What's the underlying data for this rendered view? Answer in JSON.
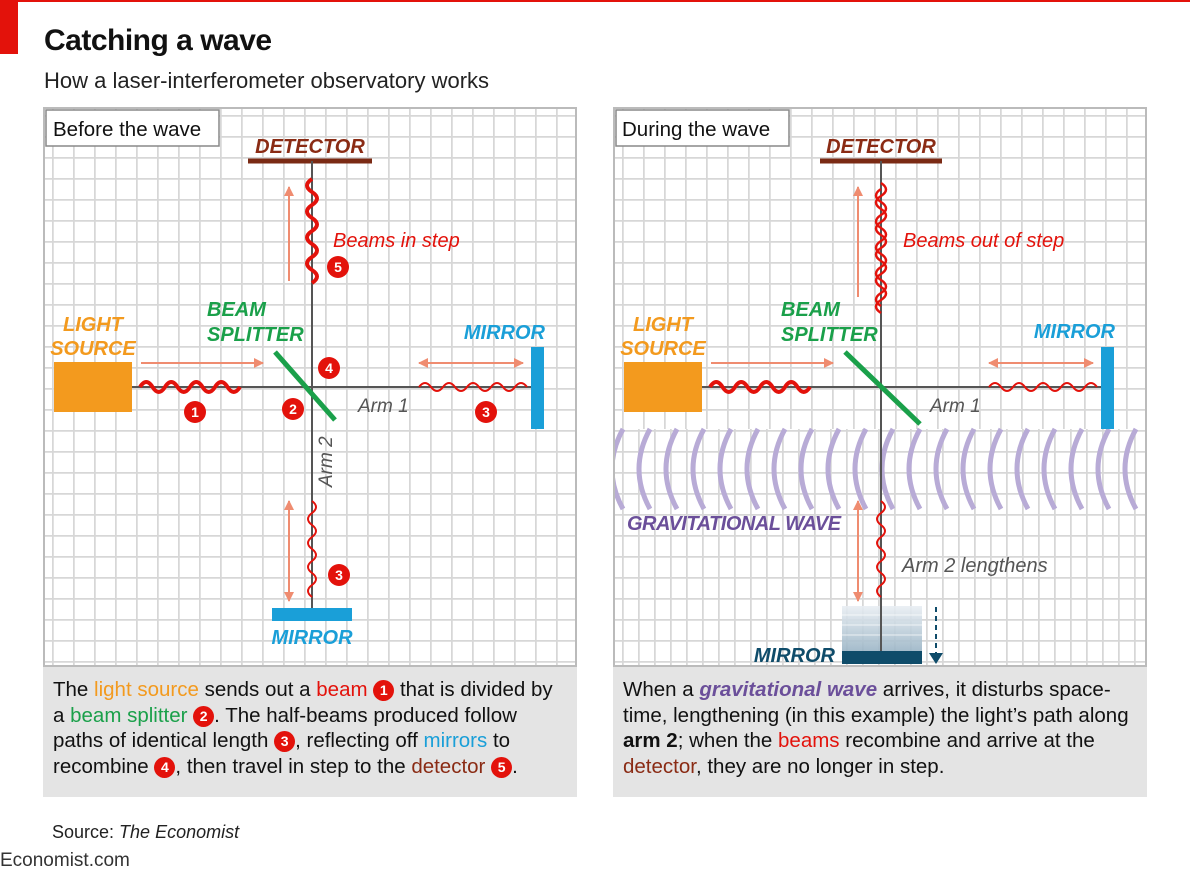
{
  "header": {
    "title": "Catching a wave",
    "subtitle": "How a laser-interferometer observatory works"
  },
  "colors": {
    "accent": "#e3120b",
    "light_source": "#f39a1e",
    "beam_splitter": "#1aa04a",
    "mirror": "#1a9fd8",
    "detector": "#8a2b14",
    "gravitational_wave": "#6b4f9a"
  },
  "panel_before": {
    "label": "Before the wave",
    "detector": "DETECTOR",
    "beams_label": "Beams in step",
    "beam_splitter_line1": "BEAM",
    "beam_splitter_line2": "SPLITTER",
    "light_source_line1": "LIGHT",
    "light_source_line2": "SOURCE",
    "mirror_right": "MIRROR",
    "mirror_bottom": "MIRROR",
    "arm1": "Arm 1",
    "arm2": "Arm 2",
    "markers": [
      "1",
      "2",
      "3",
      "4",
      "5"
    ]
  },
  "panel_during": {
    "label": "During the wave",
    "detector": "DETECTOR",
    "beams_label": "Beams out of step",
    "beam_splitter_line1": "BEAM",
    "beam_splitter_line2": "SPLITTER",
    "light_source_line1": "LIGHT",
    "light_source_line2": "SOURCE",
    "mirror_right": "MIRROR",
    "mirror_bottom": "MIRROR",
    "arm1": "Arm 1",
    "gw_label": "GRAVITATIONAL WAVE",
    "arm2_label": "Arm 2 lengthens"
  },
  "caption_before": {
    "t1": "The ",
    "light_source": "light source",
    "t2": " sends out a ",
    "beam": "beam",
    "n1": "1",
    "t3": " that is divided by a ",
    "beam_splitter": "beam splitter",
    "n2": "2",
    "t4": ". The half-beams produced follow paths of identical length ",
    "n3": "3",
    "t5": ", reflecting off ",
    "mirrors": "mirrors",
    "t6": " to recombine ",
    "n4": "4",
    "t7": ", then travel in step to the ",
    "detector": "detector",
    "n5": "5",
    "t8": "."
  },
  "caption_during": {
    "t1": "When a ",
    "gw": "gravitational wave",
    "t2": " arrives, it disturbs space-time, lengthening (in this example) the light’s path along ",
    "arm2": "arm 2",
    "t3": "; when the ",
    "beams": "beams",
    "t4": " recombine and arrive at the ",
    "detector": "detector",
    "t5": ", they are no longer in step."
  },
  "source": {
    "prefix": "Source: ",
    "name": "The Economist"
  },
  "footer": "Economist.com"
}
